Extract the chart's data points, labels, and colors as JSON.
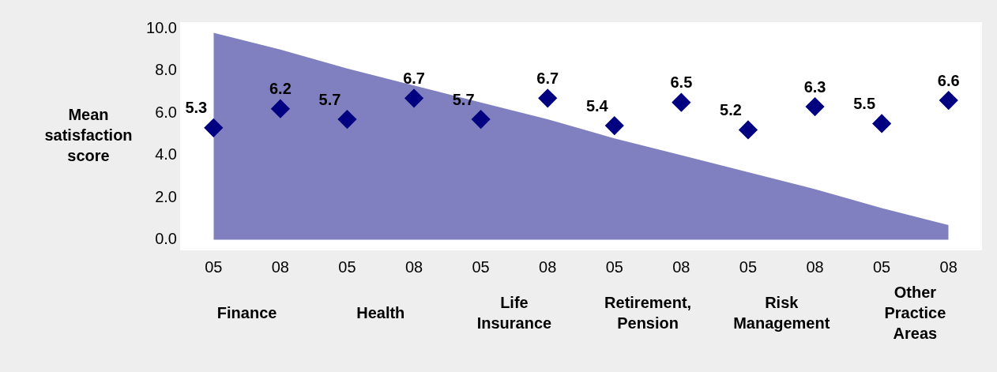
{
  "chart_data": {
    "type": "scatter",
    "ylabel": "Mean satisfaction score",
    "categories": [
      "05",
      "08",
      "05",
      "08",
      "05",
      "08",
      "05",
      "08",
      "05",
      "08",
      "05",
      "08"
    ],
    "series": [
      {
        "type": "area",
        "marker": "none",
        "color": "#8080c0",
        "values": [
          9.8,
          9.0,
          8.1,
          7.3,
          6.5,
          5.7,
          4.8,
          4.0,
          3.2,
          2.4,
          1.5,
          0.7
        ]
      },
      {
        "color": "#000080",
        "values": [
          5.3,
          6.2,
          5.7,
          6.7,
          5.7,
          6.7,
          5.4,
          6.5,
          5.2,
          6.3,
          5.5,
          6.6
        ],
        "value_labels": [
          "5.3",
          "6.2",
          "5.7",
          "6.7",
          "5.7",
          "6.7",
          "5.4",
          "6.5",
          "5.2",
          "6.3",
          "5.5",
          "6.6"
        ]
      }
    ],
    "ylim": [
      -0.5,
      10.3
    ],
    "yticks": [
      {
        "value": 0,
        "label": "0.0"
      },
      {
        "value": 2,
        "label": "2.0"
      },
      {
        "value": 4,
        "label": "4.0"
      },
      {
        "value": 6,
        "label": "6.0"
      },
      {
        "value": 8,
        "label": "8.0"
      },
      {
        "value": 10,
        "label": "10.0"
      }
    ],
    "annotations": [
      "Finance",
      "Health",
      "Life Insurance",
      "Retirement, Pension",
      "Risk Management",
      "Other Practice Areas"
    ],
    "marker": "diamond",
    "grid": false,
    "legend": false
  }
}
